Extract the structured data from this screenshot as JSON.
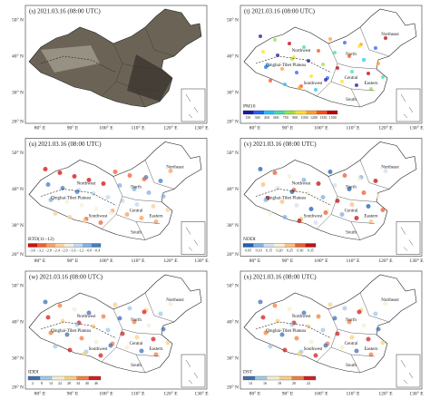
{
  "axes": {
    "lat": [
      "50° N",
      "40° N",
      "30° N",
      "20° N"
    ],
    "lon": [
      "80° E",
      "90° E",
      "100° E",
      "110° E",
      "120° E",
      "130° E"
    ]
  },
  "regions": [
    "Northwest",
    "North",
    "Northeast",
    "Qinghai-Tibet Plateau",
    "Southwest",
    "Central",
    "Eastern",
    "South"
  ],
  "panels": [
    {
      "title": "(s) 2021.03.16 (08:00 UTC)"
    },
    {
      "title": "(t) 2021.03.16 (08:00 UTC)",
      "colorbar_label": "PM10",
      "colorbar_ticks": [
        "150",
        "300",
        "450",
        "600",
        "750",
        "900",
        "1050",
        "1200",
        "1350",
        "1500"
      ]
    },
    {
      "title": "(u) 2021.03.16 (08:00 UTC)",
      "colorbar_label": "BTD(11−12)",
      "colorbar_ticks": [
        "−3.6",
        "−3.2",
        "−2.8",
        "−2.4",
        "−2.0",
        "−1.6",
        "−1.2",
        "−0.8",
        "−0.4"
      ]
    },
    {
      "title": "(v) 2021.03.16 (08:00 UTC)",
      "colorbar_label": "NDDI",
      "colorbar_ticks": [
        "0.05",
        "0.10",
        "0.15",
        "0.20",
        "0.25",
        "0.30",
        "0.35"
      ]
    },
    {
      "title": "(w) 2021.03.16 (08:00 UTC)",
      "colorbar_label": "IDDI",
      "colorbar_ticks": [
        "2",
        "8",
        "14",
        "22",
        "28",
        "34",
        "40",
        "46"
      ]
    },
    {
      "title": "(x) 2021.03.16 (08:00 UTC)",
      "colorbar_label": "DST",
      "colorbar_ticks": [
        "14",
        "16",
        "18",
        "20",
        "22"
      ]
    }
  ]
}
